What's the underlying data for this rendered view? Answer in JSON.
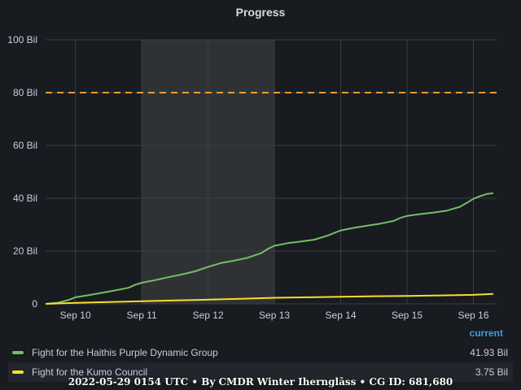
{
  "chart_data": {
    "type": "line",
    "title": "Progress",
    "ylim": [
      0,
      100
    ],
    "y_ticks": [
      "0",
      "20 Bil",
      "40 Bil",
      "60 Bil",
      "80 Bil",
      "100 Bil"
    ],
    "y_tick_values": [
      0,
      20,
      40,
      60,
      80,
      100
    ],
    "x_ticks": [
      "Sep 10",
      "Sep 11",
      "Sep 12",
      "Sep 13",
      "Sep 14",
      "Sep 15",
      "Sep 16"
    ],
    "x_tick_values": [
      10,
      11,
      12,
      13,
      14,
      15,
      16
    ],
    "xlim": [
      9.55,
      16.35
    ],
    "grid": true,
    "threshold": {
      "value": 80,
      "color": "#ff9830",
      "style": "dashed"
    },
    "highlight_region": {
      "from": 11.0,
      "to": 13.0
    },
    "legend": {
      "header": "current",
      "placement": "bottom"
    },
    "series": [
      {
        "name": "Fight for the Haithis Purple Dynamic Group",
        "color": "#73bf69",
        "current": "41.93 Bil",
        "points": [
          [
            9.55,
            0
          ],
          [
            9.75,
            0.5
          ],
          [
            9.9,
            1.5
          ],
          [
            10.0,
            2.5
          ],
          [
            10.2,
            3.3
          ],
          [
            10.4,
            4.2
          ],
          [
            10.6,
            5.1
          ],
          [
            10.8,
            6.1
          ],
          [
            10.9,
            7.2
          ],
          [
            11.0,
            8.0
          ],
          [
            11.2,
            9.0
          ],
          [
            11.4,
            10.1
          ],
          [
            11.6,
            11.1
          ],
          [
            11.8,
            12.3
          ],
          [
            12.0,
            14.0
          ],
          [
            12.2,
            15.5
          ],
          [
            12.4,
            16.4
          ],
          [
            12.6,
            17.5
          ],
          [
            12.8,
            19.2
          ],
          [
            12.9,
            20.8
          ],
          [
            13.0,
            22.0
          ],
          [
            13.2,
            23.0
          ],
          [
            13.4,
            23.6
          ],
          [
            13.6,
            24.3
          ],
          [
            13.8,
            25.8
          ],
          [
            14.0,
            27.8
          ],
          [
            14.2,
            28.8
          ],
          [
            14.4,
            29.6
          ],
          [
            14.6,
            30.4
          ],
          [
            14.8,
            31.4
          ],
          [
            14.9,
            32.6
          ],
          [
            15.0,
            33.3
          ],
          [
            15.2,
            34.0
          ],
          [
            15.4,
            34.6
          ],
          [
            15.6,
            35.3
          ],
          [
            15.8,
            36.8
          ],
          [
            15.9,
            38.2
          ],
          [
            16.0,
            39.8
          ],
          [
            16.1,
            40.8
          ],
          [
            16.2,
            41.6
          ],
          [
            16.3,
            41.93
          ]
        ]
      },
      {
        "name": "Fight for the Kumo Council",
        "color": "#fade2a",
        "current": "3.75 Bil",
        "points": [
          [
            9.55,
            0
          ],
          [
            10.0,
            0.4
          ],
          [
            10.5,
            0.7
          ],
          [
            11.0,
            1.0
          ],
          [
            11.5,
            1.3
          ],
          [
            12.0,
            1.6
          ],
          [
            12.5,
            1.9
          ],
          [
            13.0,
            2.3
          ],
          [
            13.5,
            2.5
          ],
          [
            14.0,
            2.7
          ],
          [
            14.5,
            2.9
          ],
          [
            15.0,
            3.0
          ],
          [
            15.5,
            3.2
          ],
          [
            16.0,
            3.4
          ],
          [
            16.3,
            3.75
          ]
        ]
      }
    ]
  },
  "footer": "2022-05-29 0154 UTC • By CMDR Winter Ihernglāss • CG ID: 681,680"
}
